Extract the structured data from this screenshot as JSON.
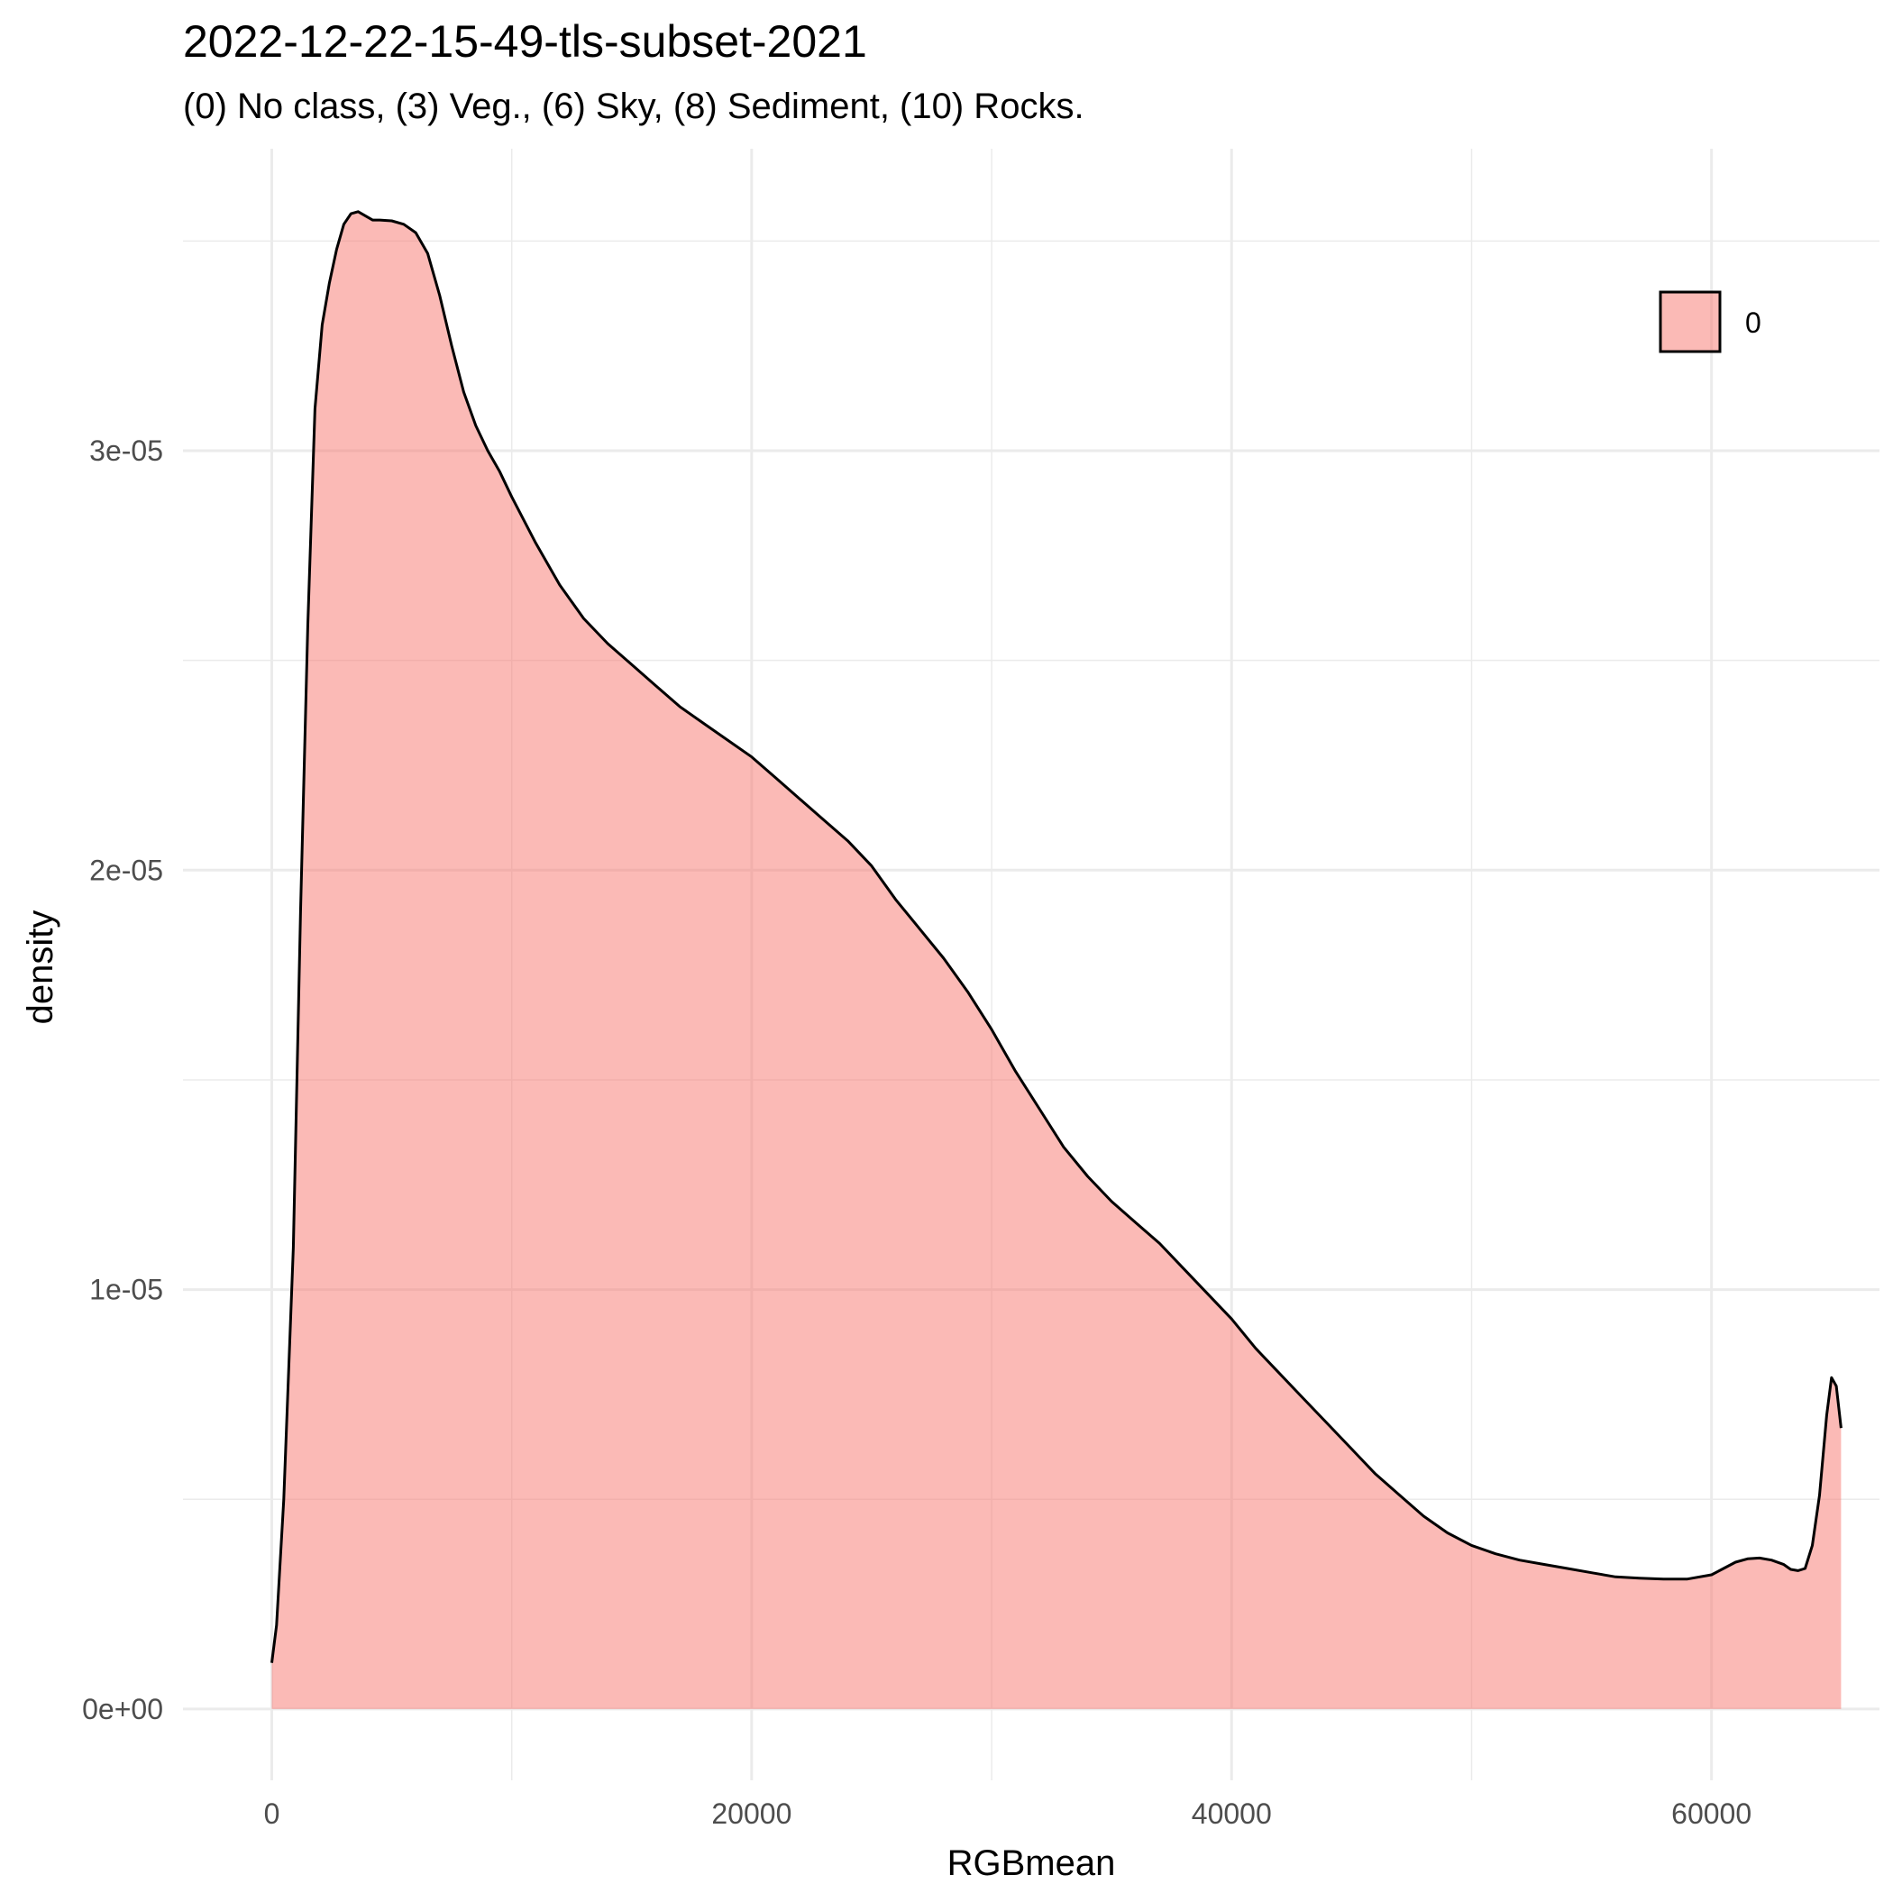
{
  "chart_data": {
    "type": "area",
    "title": "2022-12-22-15-49-tls-subset-2021",
    "subtitle": "(0) No class, (3) Veg., (6) Sky, (8) Sediment, (10) Rocks.",
    "xlabel": "RGBmean",
    "ylabel": "density",
    "xlim": [
      -3700,
      67000
    ],
    "ylim": [
      -1.7e-06,
      3.72e-05
    ],
    "x_ticks": [
      0,
      20000,
      40000,
      60000
    ],
    "x_tick_labels": [
      "0",
      "20000",
      "40000",
      "60000"
    ],
    "y_ticks": [
      0,
      1e-05,
      2e-05,
      3e-05
    ],
    "y_tick_labels": [
      "0e+00",
      "1e-05",
      "2e-05",
      "3e-05"
    ],
    "grid": true,
    "legend": {
      "placement": "top-right",
      "entries": [
        "0"
      ]
    },
    "fill_color": "#F8766D",
    "fill_opacity": 0.5,
    "line_color": "#000000",
    "series": [
      {
        "name": "0",
        "x": [
          0,
          200,
          500,
          900,
          1200,
          1500,
          1800,
          2100,
          2400,
          2700,
          3000,
          3300,
          3600,
          3900,
          4200,
          4500,
          5000,
          5500,
          6000,
          6500,
          7000,
          7500,
          8000,
          8500,
          9000,
          9500,
          10000,
          11000,
          12000,
          13000,
          14000,
          15000,
          16000,
          17000,
          18000,
          19000,
          20000,
          21000,
          22000,
          23000,
          24000,
          25000,
          26000,
          27000,
          28000,
          29000,
          30000,
          31000,
          32000,
          33000,
          34000,
          35000,
          36000,
          37000,
          38000,
          39000,
          40000,
          41000,
          42000,
          43000,
          44000,
          45000,
          46000,
          47000,
          48000,
          49000,
          50000,
          51000,
          52000,
          53000,
          54000,
          55000,
          56000,
          57000,
          58000,
          59000,
          60000,
          60500,
          61000,
          61500,
          62000,
          62500,
          63000,
          63300,
          63600,
          63900,
          64200,
          64500,
          64800,
          65000,
          65200,
          65400
        ],
        "y": [
          1.1e-06,
          2e-06,
          5e-06,
          1.1e-05,
          1.9e-05,
          2.58e-05,
          3.1e-05,
          3.3e-05,
          3.4e-05,
          3.48e-05,
          3.54e-05,
          3.565e-05,
          3.57e-05,
          3.56e-05,
          3.55e-05,
          3.55e-05,
          3.548e-05,
          3.54e-05,
          3.52e-05,
          3.47e-05,
          3.37e-05,
          3.25e-05,
          3.14e-05,
          3.06e-05,
          3e-05,
          2.95e-05,
          2.89e-05,
          2.78e-05,
          2.68e-05,
          2.6e-05,
          2.54e-05,
          2.49e-05,
          2.44e-05,
          2.39e-05,
          2.35e-05,
          2.31e-05,
          2.27e-05,
          2.22e-05,
          2.17e-05,
          2.12e-05,
          2.07e-05,
          2.01e-05,
          1.93e-05,
          1.86e-05,
          1.79e-05,
          1.71e-05,
          1.62e-05,
          1.52e-05,
          1.43e-05,
          1.34e-05,
          1.27e-05,
          1.21e-05,
          1.16e-05,
          1.11e-05,
          1.05e-05,
          9.9e-06,
          9.3e-06,
          8.6e-06,
          8e-06,
          7.4e-06,
          6.8e-06,
          6.2e-06,
          5.6e-06,
          5.1e-06,
          4.6e-06,
          4.2e-06,
          3.9e-06,
          3.7e-06,
          3.55e-06,
          3.45e-06,
          3.35e-06,
          3.25e-06,
          3.15e-06,
          3.12e-06,
          3.1e-06,
          3.1e-06,
          3.2e-06,
          3.35e-06,
          3.5e-06,
          3.58e-06,
          3.6e-06,
          3.55e-06,
          3.45e-06,
          3.33e-06,
          3.3e-06,
          3.35e-06,
          3.9e-06,
          5.1e-06,
          7e-06,
          7.9e-06,
          7.7e-06,
          6.7e-06
        ]
      }
    ]
  }
}
